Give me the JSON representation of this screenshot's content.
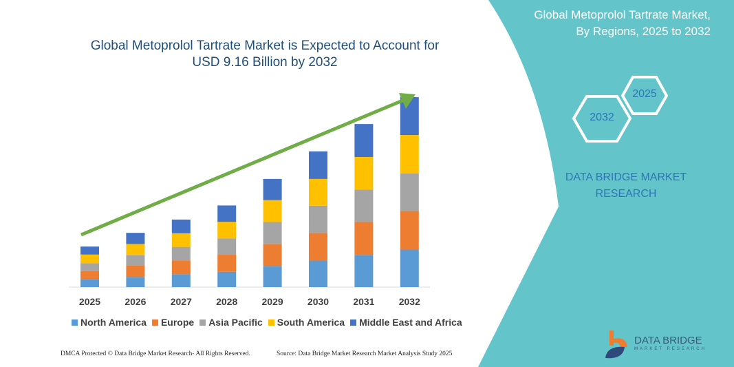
{
  "title_line1": "Global Metoprolol Tartrate Market is Expected to Account for",
  "title_line2": "USD 9.16 Billion by 2032",
  "right_panel": {
    "title_line1": "Global Metoprolol Tartrate Market,",
    "title_line2": "By Regions, 2025 to 2032",
    "hex_start": "2025",
    "hex_end": "2032",
    "brand_line1": "DATA BRIDGE MARKET",
    "brand_line2": "RESEARCH",
    "color": "#63C5CA"
  },
  "footer": {
    "copyright": "DMCA Protected © Data Bridge Market Research- All Rights Reserved.",
    "source": "Source: Data Bridge Market Research Market Analysis Study 2025"
  },
  "logo": {
    "name": "DATA BRIDGE",
    "sub": "MARKET RESEARCH"
  },
  "chart_data": {
    "type": "bar",
    "stacked": true,
    "title": "Global Metoprolol Tartrate Market is Expected to Account for USD 9.16 Billion by 2032",
    "xlabel": "",
    "ylabel": "",
    "grid": false,
    "legend_position": "bottom",
    "trend_arrow": true,
    "categories": [
      "2025",
      "2026",
      "2027",
      "2028",
      "2029",
      "2030",
      "2031",
      "2032"
    ],
    "series": [
      {
        "name": "North America",
        "color": "#5B9BD5",
        "values": [
          0.39,
          0.49,
          0.62,
          0.74,
          1.02,
          1.28,
          1.55,
          1.81
        ]
      },
      {
        "name": "Europe",
        "color": "#ED7D31",
        "values": [
          0.38,
          0.54,
          0.67,
          0.82,
          1.06,
          1.33,
          1.59,
          1.86
        ]
      },
      {
        "name": "Asia Pacific",
        "color": "#A5A5A5",
        "values": [
          0.38,
          0.52,
          0.65,
          0.79,
          1.06,
          1.32,
          1.56,
          1.81
        ]
      },
      {
        "name": "South America",
        "color": "#FFC000",
        "values": [
          0.42,
          0.53,
          0.66,
          0.8,
          1.06,
          1.29,
          1.58,
          1.86
        ]
      },
      {
        "name": "Middle East and Africa",
        "color": "#4472C4",
        "values": [
          0.39,
          0.54,
          0.66,
          0.79,
          1.02,
          1.33,
          1.59,
          1.83
        ]
      }
    ]
  }
}
